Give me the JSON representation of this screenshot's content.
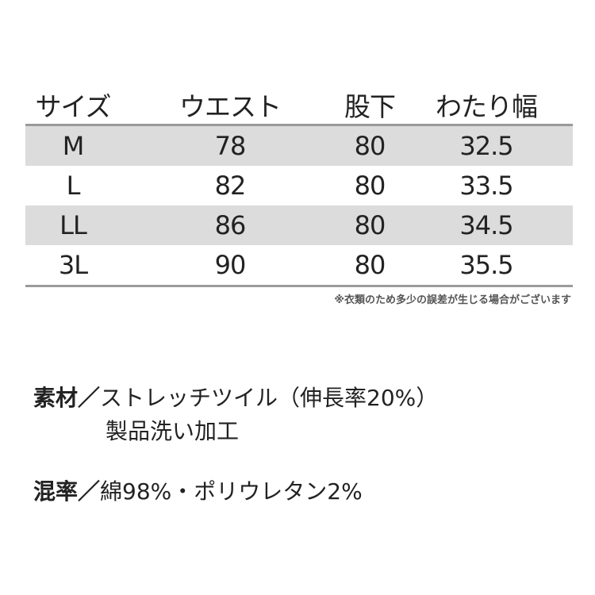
{
  "table": {
    "headers": [
      "サイズ",
      "ウエスト",
      "股下",
      "わたり幅"
    ],
    "rows": [
      [
        "M",
        "78",
        "80",
        "32.5"
      ],
      [
        "L",
        "82",
        "80",
        "33.5"
      ],
      [
        "LL",
        "86",
        "80",
        "34.5"
      ],
      [
        "3L",
        "90",
        "80",
        "35.5"
      ]
    ],
    "shade_color": "#dcdcdc"
  },
  "note": "※衣類のため多少の誤差が生じる場合がございます",
  "material": {
    "label": "素材／",
    "line1": "ストレッチツイル（伸長率20%）",
    "line2": "製品洗い加工"
  },
  "blend": {
    "label": "混率／",
    "value": "綿98%・ポリウレタン2%"
  }
}
